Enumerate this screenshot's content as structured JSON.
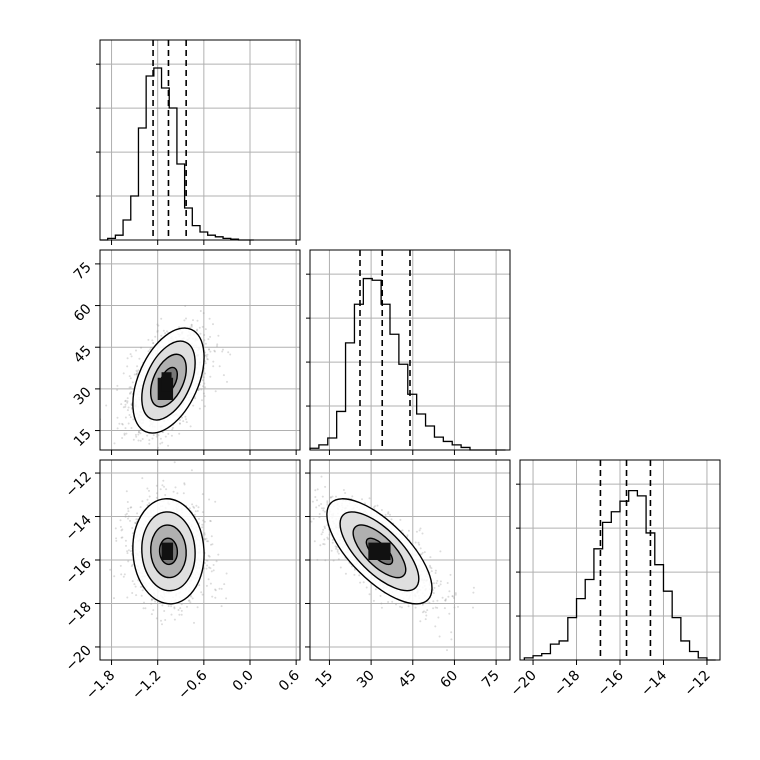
{
  "chart_data": {
    "type": "corner",
    "grid": true,
    "colors": {
      "axis": "#000000",
      "grid": "#b0b0b0",
      "scatter": "#9a9a9a",
      "histogram": "#000000"
    },
    "param_ranges": [
      [
        -1.95,
        0.65
      ],
      [
        8,
        80
      ],
      [
        -20.6,
        -11.4
      ]
    ],
    "param_ticks": [
      {
        "values": [
          -1.8,
          -1.2,
          -0.6,
          0.0,
          0.6
        ],
        "labels": [
          "−1.8",
          "−1.2",
          "−0.6",
          "0.0",
          "0.6"
        ]
      },
      {
        "values": [
          15,
          30,
          45,
          60,
          75
        ],
        "labels": [
          "15",
          "30",
          "45",
          "60",
          "75"
        ]
      },
      {
        "values": [
          -20,
          -18,
          -16,
          -14,
          -12
        ],
        "labels": [
          "−20",
          "−18",
          "−16",
          "−14",
          "−12"
        ]
      }
    ],
    "histograms": [
      {
        "param": 0,
        "edges": [
          -1.95,
          -1.85,
          -1.75,
          -1.65,
          -1.55,
          -1.45,
          -1.35,
          -1.25,
          -1.15,
          -1.05,
          -0.95,
          -0.85,
          -0.75,
          -0.65,
          -0.55,
          -0.45,
          -0.35,
          -0.25,
          -0.15,
          -0.05,
          0.05
        ],
        "counts": [
          0,
          2,
          6,
          25,
          55,
          140,
          205,
          215,
          190,
          165,
          95,
          40,
          18,
          10,
          6,
          4,
          2,
          1,
          0,
          0
        ],
        "quantiles": [
          -1.26,
          -1.06,
          -0.83
        ],
        "ylim": [
          0,
          225
        ]
      },
      {
        "param": 1,
        "edges": [
          8,
          11.2,
          14.4,
          17.6,
          20.8,
          24,
          27.2,
          30.4,
          33.6,
          36.8,
          40,
          43.2,
          46.4,
          49.6,
          52.8,
          56,
          59.2,
          62.4,
          65.6,
          68.8,
          72,
          75.2,
          78.4
        ],
        "counts": [
          2,
          6,
          14,
          45,
          125,
          170,
          200,
          198,
          170,
          135,
          100,
          65,
          42,
          28,
          15,
          10,
          6,
          3,
          0,
          0,
          0,
          0
        ],
        "quantiles": [
          26,
          34,
          44
        ],
        "ylim": [
          0,
          210
        ]
      },
      {
        "param": 2,
        "edges": [
          -20.4,
          -20.0,
          -19.6,
          -19.2,
          -18.8,
          -18.4,
          -18.0,
          -17.6,
          -17.2,
          -16.8,
          -16.4,
          -16.0,
          -15.6,
          -15.2,
          -14.8,
          -14.4,
          -14.0,
          -13.6,
          -13.2,
          -12.8,
          -12.4,
          -12.0,
          -11.6
        ],
        "counts": [
          2,
          4,
          6,
          15,
          18,
          40,
          58,
          76,
          105,
          130,
          140,
          150,
          160,
          155,
          120,
          90,
          65,
          40,
          18,
          8,
          2,
          0
        ],
        "quantiles": [
          -16.9,
          -15.7,
          -14.6
        ],
        "ylim": [
          0,
          170
        ]
      }
    ],
    "pairs": [
      {
        "x_param": 0,
        "y_param": 1,
        "center": [
          -1.06,
          33
        ],
        "sigma": [
          0.22,
          9
        ],
        "corr": 0.45,
        "core_cells": [
          [
            -1.2,
            26,
            -1.0,
            34
          ],
          [
            -1.15,
            29,
            -1.02,
            36
          ]
        ],
        "contour_levels_sigma": [
          0.5,
          1.0,
          1.5,
          2.0
        ]
      },
      {
        "x_param": 0,
        "y_param": 2,
        "center": [
          -1.06,
          -15.6
        ],
        "sigma": [
          0.22,
          1.15
        ],
        "corr": -0.05,
        "core_cells": [
          [
            -1.15,
            -16.0,
            -1.0,
            -15.2
          ]
        ],
        "contour_levels_sigma": [
          0.5,
          1.0,
          1.5,
          2.0
        ]
      },
      {
        "x_param": 1,
        "y_param": 2,
        "center": [
          33,
          -15.6
        ],
        "sigma": [
          9,
          1.15
        ],
        "corr": -0.7,
        "core_cells": [
          [
            29,
            -16.0,
            37,
            -15.2
          ]
        ],
        "contour_levels_sigma": [
          0.5,
          1.0,
          1.5,
          2.0
        ]
      }
    ]
  }
}
